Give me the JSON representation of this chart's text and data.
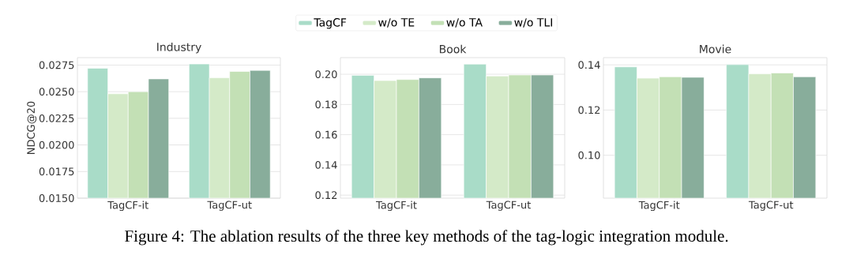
{
  "chart_data": [
    {
      "type": "bar",
      "title": "Industry",
      "ylabel": "NDCG@20",
      "categories": [
        "TagCF-it",
        "TagCF-ut"
      ],
      "series": [
        {
          "name": "TagCF",
          "color": "#a9dcc8",
          "values": [
            0.0272,
            0.0276
          ]
        },
        {
          "name": "w/o TE",
          "color": "#d4eac8",
          "values": [
            0.0248,
            0.0263
          ]
        },
        {
          "name": "w/o TA",
          "color": "#c3e0b5",
          "values": [
            0.025,
            0.0269
          ]
        },
        {
          "name": "w/o TLI",
          "color": "#88ad9b",
          "values": [
            0.0262,
            0.027
          ]
        }
      ],
      "ylim": [
        0.015,
        0.0282
      ],
      "yticks": [
        {
          "value": 0.015,
          "label": "0.0150"
        },
        0.0175,
        {
          "value": 0.02,
          "label": "0.0200"
        },
        0.0225,
        {
          "value": 0.025,
          "label": "0.0250"
        },
        0.0275
      ],
      "grid": "y",
      "legend": "top",
      "annotations": [
        "Figure 4: The ablation results of the three key methods of the tag-logic integration module."
      ]
    },
    {
      "type": "bar",
      "title": "Book",
      "categories": [
        "TagCF-it",
        "TagCF-ut"
      ],
      "series": [
        {
          "color": "#a9dcc8",
          "values": [
            0.1993,
            0.2067
          ]
        },
        {
          "color": "#d4eac8",
          "values": [
            0.1958,
            0.1988
          ]
        },
        {
          "color": "#c3e0b5",
          "values": [
            0.1965,
            0.1995
          ]
        },
        {
          "color": "#88ad9b",
          "values": [
            0.1976,
            0.1995
          ]
        }
      ],
      "ylim": [
        0.118,
        0.211
      ],
      "yticks": [
        0.12,
        0.14,
        0.16,
        0.18,
        {
          "value": 0.2,
          "label": "0.20"
        }
      ],
      "grid": "y"
    },
    {
      "type": "bar",
      "title": "Movie",
      "categories": [
        "TagCF-it",
        "TagCF-ut"
      ],
      "series": [
        {
          "color": "#a9dcc8",
          "values": [
            0.1391,
            0.1401
          ]
        },
        {
          "color": "#d4eac8",
          "values": [
            0.1341,
            0.136
          ]
        },
        {
          "color": "#c3e0b5",
          "values": [
            0.1347,
            0.1364
          ]
        },
        {
          "color": "#88ad9b",
          "values": [
            0.1345,
            0.1347
          ]
        }
      ],
      "ylim": [
        0.081,
        0.1432
      ],
      "yticks": [
        {
          "value": 0.1,
          "label": "0.10"
        },
        0.12,
        0.14
      ],
      "grid": "y"
    }
  ]
}
